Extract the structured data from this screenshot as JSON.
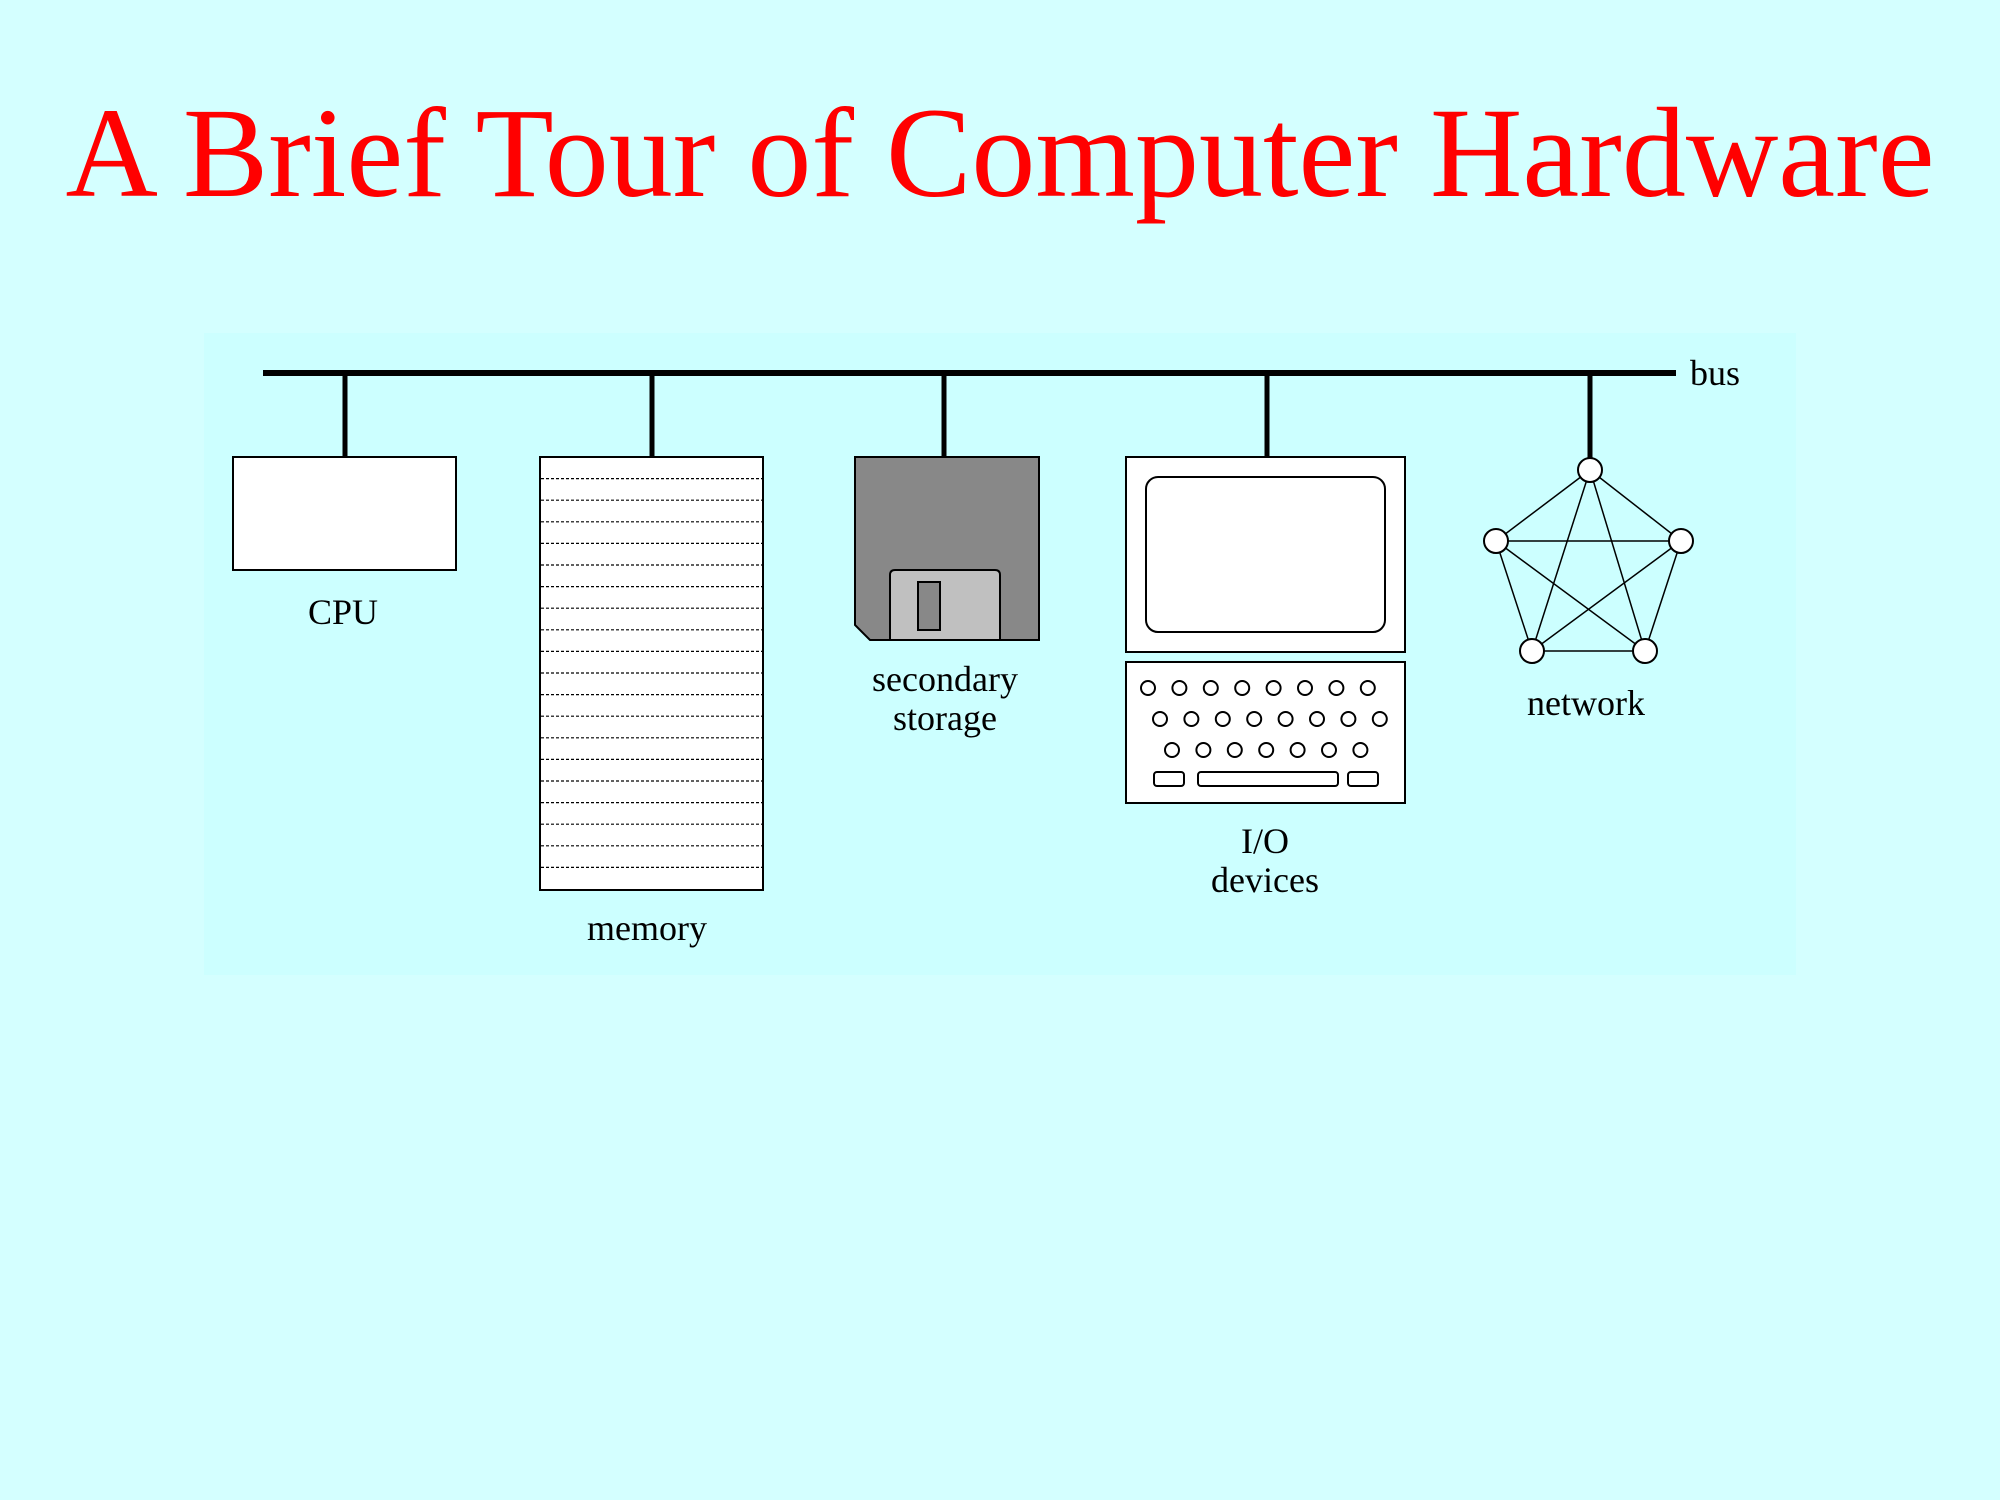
{
  "slide": {
    "title": "A Brief Tour of Computer Hardware"
  },
  "diagram": {
    "bus_label": "bus",
    "components": {
      "cpu": {
        "label": "CPU"
      },
      "memory": {
        "label": "memory"
      },
      "storage": {
        "label_line1": "secondary",
        "label_line2": "storage"
      },
      "io": {
        "label_line1": "I/O",
        "label_line2": "devices"
      },
      "network": {
        "label": "network"
      }
    }
  },
  "colors": {
    "background": "#d4ffff",
    "title": "#ff0000",
    "diagram_panel": "#ccffff",
    "disk_body": "#888888",
    "disk_shutter": "#c0c0c0"
  }
}
